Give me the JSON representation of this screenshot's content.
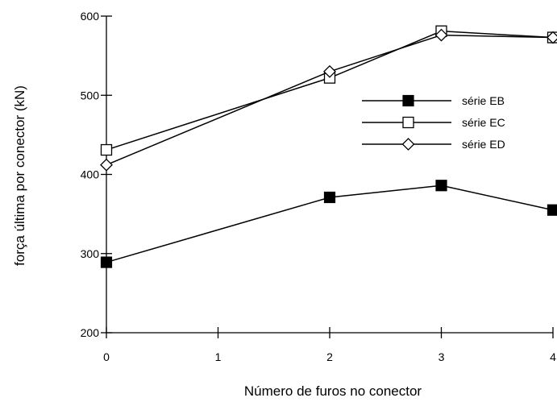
{
  "chart_data": {
    "type": "line",
    "xlabel": "Número de furos no conector",
    "ylabel": "força última por conector (kN)",
    "xlim": [
      0,
      4
    ],
    "ylim": [
      200,
      600
    ],
    "x_ticks": [
      "0",
      "1",
      "2",
      "3",
      "4"
    ],
    "y_ticks": [
      "200",
      "300",
      "400",
      "500",
      "600"
    ],
    "grid": false,
    "legend_position": "right",
    "series": [
      {
        "name": "série EB",
        "marker": "filled-square",
        "x": [
          0,
          2,
          3,
          4
        ],
        "y": [
          289,
          371,
          386,
          355
        ]
      },
      {
        "name": "série EC",
        "marker": "open-square",
        "x": [
          0,
          2,
          3,
          4
        ],
        "y": [
          431,
          522,
          581,
          573
        ]
      },
      {
        "name": "série ED",
        "marker": "open-diamond",
        "x": [
          0,
          2,
          3,
          4
        ],
        "y": [
          412,
          530,
          576,
          573
        ]
      }
    ]
  }
}
